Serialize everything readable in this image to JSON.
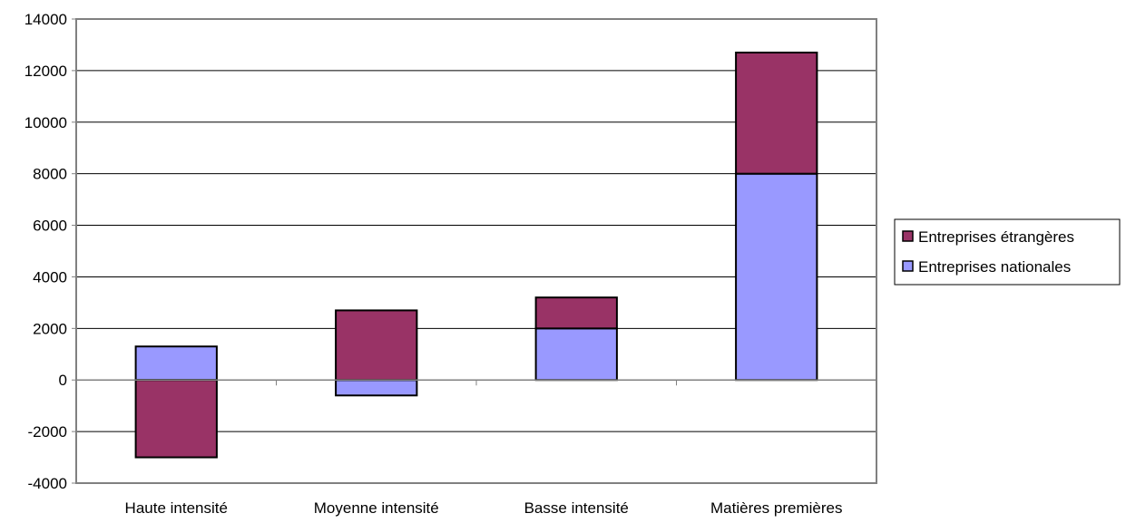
{
  "chart_data": {
    "type": "bar",
    "stacked": true,
    "categories": [
      "Haute intensité",
      "Moyenne intensité",
      "Basse intensité",
      "Matières premières"
    ],
    "series": [
      {
        "name": "Entreprises nationales",
        "values": [
          1300,
          -600,
          2000,
          8000
        ],
        "color": "#9999ff"
      },
      {
        "name": "Entreprises étrangères",
        "values": [
          -3000,
          2700,
          1200,
          4700
        ],
        "color": "#993366"
      }
    ],
    "ylim": [
      -4000,
      14000
    ],
    "yticks": [
      -4000,
      -2000,
      0,
      2000,
      4000,
      6000,
      8000,
      10000,
      12000,
      14000
    ],
    "grid": true,
    "legend": {
      "position": "right",
      "order": [
        "Entreprises étrangères",
        "Entreprises nationales"
      ]
    },
    "title": "",
    "xlabel": "",
    "ylabel": ""
  }
}
